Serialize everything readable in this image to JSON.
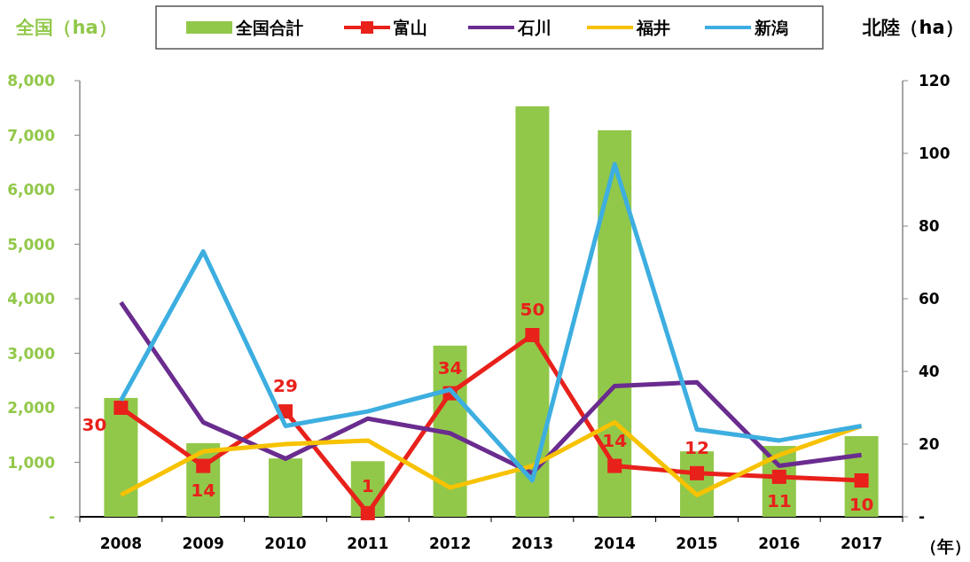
{
  "chart_data": {
    "type": "bar",
    "ylabel": "全国（ha）",
    "y2label": "北陸（ha）",
    "xlabel": "（年）",
    "categories": [
      "2008",
      "2009",
      "2010",
      "2011",
      "2012",
      "2013",
      "2014",
      "2015",
      "2016",
      "2017"
    ],
    "series": [
      {
        "name": "全国合計",
        "color": "#92c84a",
        "values": [
          2180,
          1350,
          1070,
          1020,
          3140,
          7530,
          7090,
          1200,
          1300,
          1480
        ]
      },
      {
        "name": "富山",
        "type": "line",
        "axis": "y2",
        "marker": "square",
        "color": "#e8211b",
        "values": [
          30,
          14,
          29,
          1,
          34,
          50,
          14,
          12,
          11,
          10
        ],
        "value_labels": [
          "30",
          "14",
          "29",
          "1",
          "34",
          "50",
          "14",
          "12",
          "11",
          "10"
        ]
      },
      {
        "name": "石川",
        "type": "line",
        "axis": "y2",
        "color": "#6a2c8f",
        "values": [
          59,
          26,
          16,
          27,
          23,
          12,
          36,
          37,
          14,
          17
        ]
      },
      {
        "name": "福井",
        "type": "line",
        "axis": "y2",
        "color": "#f7c200",
        "values": [
          6,
          18,
          20,
          21,
          8,
          14,
          26,
          6,
          17,
          25
        ]
      },
      {
        "name": "新潟",
        "type": "line",
        "axis": "y2",
        "color": "#3daee0",
        "values": [
          32,
          73,
          25,
          29,
          35,
          10,
          97,
          24,
          21,
          25
        ]
      }
    ],
    "ylim": [
      0,
      8000
    ],
    "yticks": [
      {
        "value": 0,
        "label": "-"
      },
      {
        "value": 1000,
        "label": "1,000"
      },
      {
        "value": 2000,
        "label": "2,000"
      },
      {
        "value": 3000,
        "label": "3,000"
      },
      {
        "value": 4000,
        "label": "4,000"
      },
      {
        "value": 5000,
        "label": "5,000"
      },
      {
        "value": 6000,
        "label": "6,000"
      },
      {
        "value": 7000,
        "label": "7,000"
      },
      {
        "value": 8000,
        "label": "8,000"
      }
    ],
    "y2lim": [
      0,
      120
    ],
    "y2ticks": [
      {
        "value": 0,
        "label": "-"
      },
      20,
      40,
      60,
      80,
      100,
      120
    ],
    "legend": "top"
  }
}
